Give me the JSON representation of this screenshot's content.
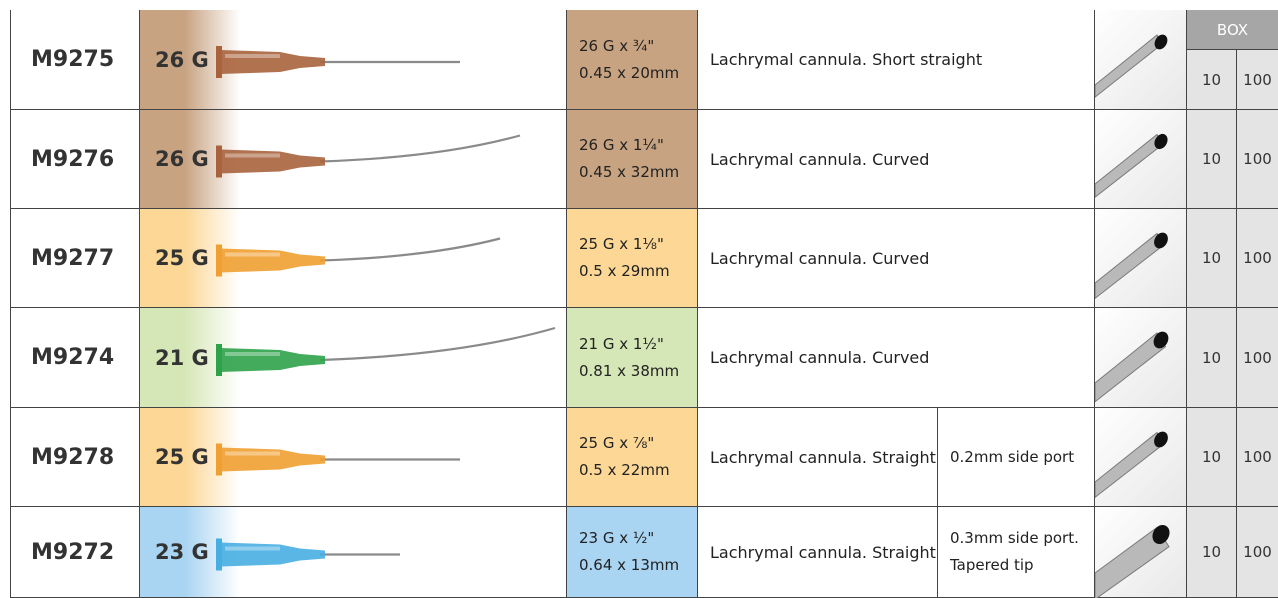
{
  "header": {
    "box": "BOX"
  },
  "rows": [
    {
      "code": "M9275",
      "gauge": "26 G",
      "color": "#c8a382",
      "hub": "#a8633d",
      "spec": [
        "26 G x ¾\"",
        "0.45 x 20mm"
      ],
      "description": "Lachrymal cannula. Short straight",
      "box": [
        "10",
        "100"
      ]
    },
    {
      "code": "M9276",
      "gauge": "26 G",
      "color": "#c8a382",
      "hub": "#a8633d",
      "spec": [
        "26 G x 1¼\"",
        "0.45 x 32mm"
      ],
      "description": "Lachrymal cannula. Curved",
      "box": [
        "10",
        "100"
      ]
    },
    {
      "code": "M9277",
      "gauge": "25 G",
      "color": "#fcd796",
      "hub": "#f0a032",
      "spec": [
        "25 G x 1⅛\"",
        "0.5 x 29mm"
      ],
      "description": "Lachrymal cannula. Curved",
      "box": [
        "10",
        "100"
      ]
    },
    {
      "code": "M9274",
      "gauge": "21 G",
      "color": "#d6e7b7",
      "hub": "#2ea24a",
      "spec": [
        "21 G x 1½\"",
        "0.81 x 38mm"
      ],
      "description": "Lachrymal cannula. Curved",
      "box": [
        "10",
        "100"
      ]
    },
    {
      "code": "M9278",
      "gauge": "25 G",
      "color": "#fcd796",
      "hub": "#f0a032",
      "spec": [
        "25 G x ⅞\"",
        "0.5 x 22mm"
      ],
      "description": "Lachrymal cannula. Straight",
      "note": [
        "0.2mm side port"
      ],
      "box": [
        "10",
        "100"
      ]
    },
    {
      "code": "M9272",
      "gauge": "23 G",
      "color": "#a9d4f2",
      "hub": "#47aee2",
      "spec": [
        "23 G x ½\"",
        "0.64 x 13mm"
      ],
      "description": "Lachrymal cannula. Straight",
      "note": [
        "0.3mm side port.",
        "Tapered tip"
      ],
      "box": [
        "10",
        "100"
      ]
    }
  ]
}
